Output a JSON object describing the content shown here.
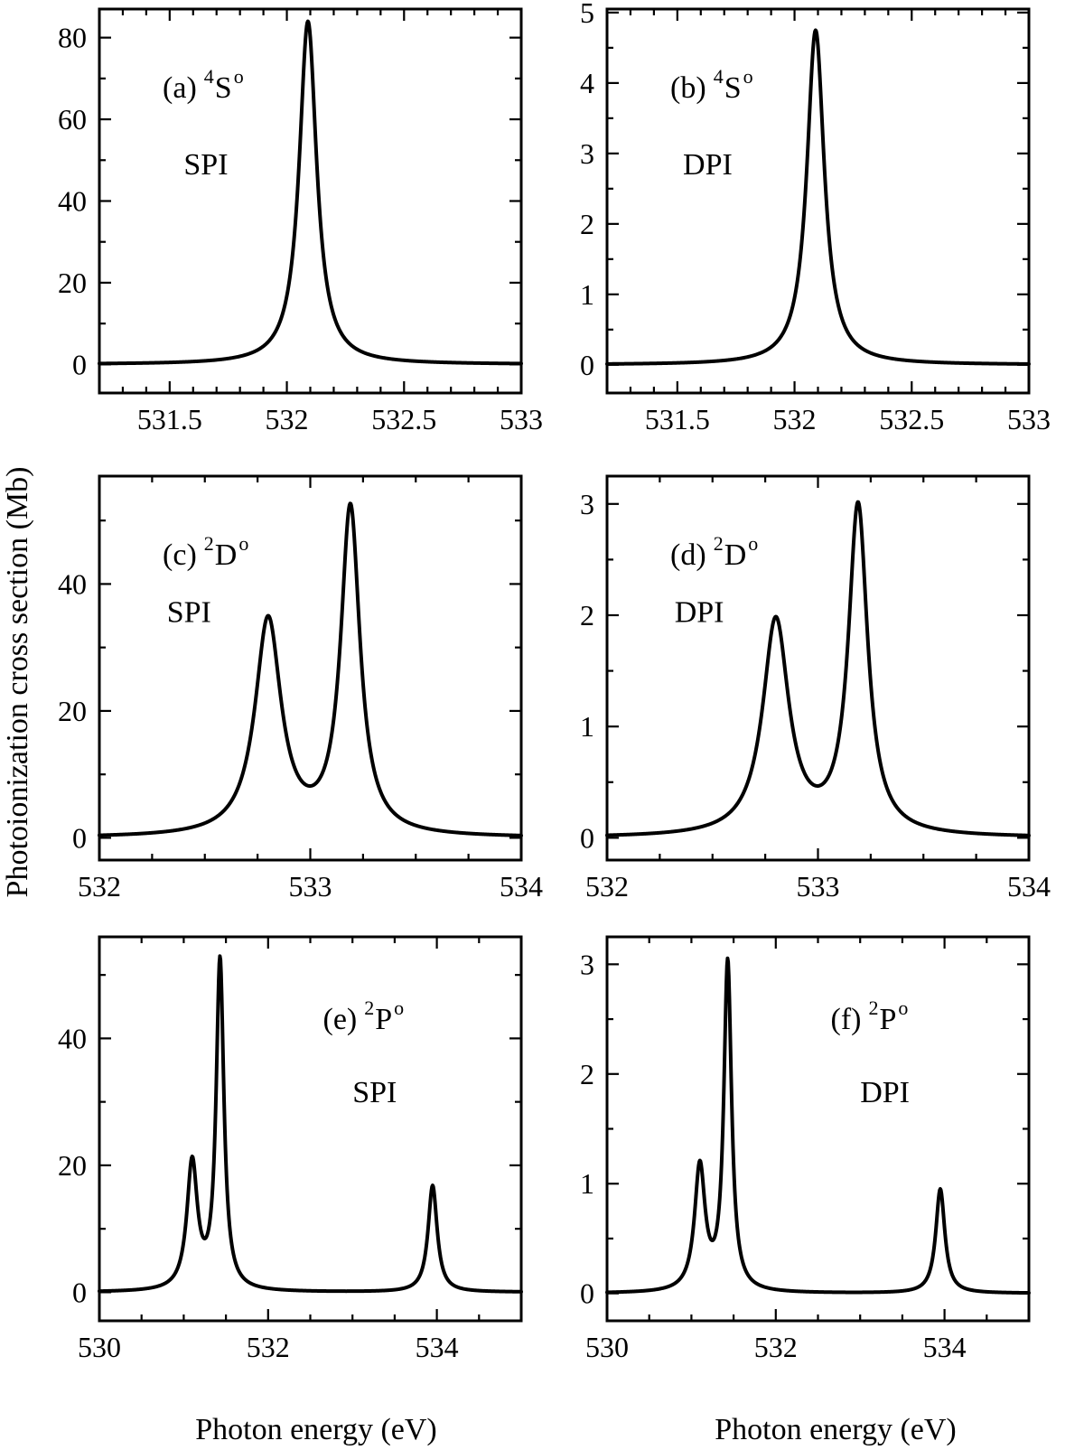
{
  "figure": {
    "ylabel": "Photoionization cross section (Mb)",
    "xlabel_left": "Photon energy (eV)",
    "xlabel_right": "Photon energy (eV)"
  },
  "chart_data": [
    {
      "type": "line",
      "panel": "(a)",
      "term": "S",
      "term_sup_left": "4",
      "term_sup_right": "o",
      "label": "SPI",
      "xlim": [
        531.2,
        533
      ],
      "ylim": [
        -7,
        87
      ],
      "xticks": [
        531.5,
        532,
        532.5,
        533
      ],
      "xtick_labels": [
        "531.5",
        "532",
        "532.5",
        "533"
      ],
      "yticks": [
        0,
        20,
        40,
        60,
        80
      ],
      "ytick_labels": [
        "0",
        "20",
        "40",
        "60",
        "80"
      ],
      "xminor": 0.1,
      "yminor": 10,
      "series": [
        {
          "peaks": [
            {
              "x": 532.09,
              "height": 84.0,
              "hwhm": 0.045
            }
          ]
        }
      ]
    },
    {
      "type": "line",
      "panel": "(b)",
      "term": "S",
      "term_sup_left": "4",
      "term_sup_right": "o",
      "label": "DPI",
      "xlim": [
        531.2,
        533
      ],
      "ylim": [
        -0.4,
        5.05
      ],
      "xticks": [
        531.5,
        532,
        532.5,
        533
      ],
      "xtick_labels": [
        "531.5",
        "532",
        "532.5",
        "533"
      ],
      "yticks": [
        0,
        1,
        2,
        3,
        4,
        5
      ],
      "ytick_labels": [
        "0",
        "1",
        "2",
        "3",
        "4",
        "5"
      ],
      "xminor": 0.1,
      "yminor": 0.5,
      "series": [
        {
          "peaks": [
            {
              "x": 532.09,
              "height": 4.75,
              "hwhm": 0.045
            }
          ]
        }
      ]
    },
    {
      "type": "line",
      "panel": "(c)",
      "term": "D",
      "term_sup_left": "2",
      "term_sup_right": "o",
      "label": "SPI",
      "xlim": [
        532,
        534
      ],
      "ylim": [
        -3.5,
        57
      ],
      "xticks": [
        532,
        533,
        534
      ],
      "xtick_labels": [
        "532",
        "533",
        "534"
      ],
      "yticks": [
        0,
        20,
        40
      ],
      "ytick_labels": [
        "0",
        "20",
        "40"
      ],
      "xminor": 0.25,
      "yminor": 10,
      "series": [
        {
          "peaks": [
            {
              "x": 532.8,
              "height": 34.0,
              "hwhm": 0.075
            },
            {
              "x": 533.19,
              "height": 51.5,
              "hwhm": 0.055
            }
          ]
        }
      ]
    },
    {
      "type": "line",
      "panel": "(d)",
      "term": "D",
      "term_sup_left": "2",
      "term_sup_right": "o",
      "label": "DPI",
      "xlim": [
        532,
        534
      ],
      "ylim": [
        -0.2,
        3.25
      ],
      "xticks": [
        532,
        533,
        534
      ],
      "xtick_labels": [
        "532",
        "533",
        "534"
      ],
      "yticks": [
        0,
        1,
        2,
        3
      ],
      "ytick_labels": [
        "0",
        "1",
        "2",
        "3"
      ],
      "xminor": 0.25,
      "yminor": 0.5,
      "series": [
        {
          "peaks": [
            {
              "x": 532.8,
              "height": 1.93,
              "hwhm": 0.075
            },
            {
              "x": 533.19,
              "height": 2.95,
              "hwhm": 0.055
            }
          ]
        }
      ]
    },
    {
      "type": "line",
      "panel": "(e)",
      "term": "P",
      "term_sup_left": "2",
      "term_sup_right": "o",
      "label": "SPI",
      "xlim": [
        530,
        535
      ],
      "ylim": [
        -4.5,
        56
      ],
      "xticks": [
        530,
        532,
        534
      ],
      "xtick_labels": [
        "530",
        "532",
        "534"
      ],
      "yticks": [
        0,
        20,
        40
      ],
      "ytick_labels": [
        "0",
        "20",
        "40"
      ],
      "xminor": 0.5,
      "yminor": 10,
      "series": [
        {
          "peaks": [
            {
              "x": 531.1,
              "height": 20.0,
              "hwhm": 0.075
            },
            {
              "x": 531.43,
              "height": 52.0,
              "hwhm": 0.055
            },
            {
              "x": 533.95,
              "height": 16.8,
              "hwhm": 0.065
            }
          ]
        }
      ]
    },
    {
      "type": "line",
      "panel": "(f)",
      "term": "P",
      "term_sup_left": "2",
      "term_sup_right": "o",
      "label": "DPI",
      "xlim": [
        530,
        535
      ],
      "ylim": [
        -0.25,
        3.25
      ],
      "xticks": [
        530,
        532,
        534
      ],
      "xtick_labels": [
        "530",
        "532",
        "534"
      ],
      "yticks": [
        0,
        1,
        2,
        3
      ],
      "ytick_labels": [
        "0",
        "1",
        "2",
        "3"
      ],
      "xminor": 0.5,
      "yminor": 0.5,
      "series": [
        {
          "peaks": [
            {
              "x": 531.1,
              "height": 1.13,
              "hwhm": 0.075
            },
            {
              "x": 531.43,
              "height": 3.0,
              "hwhm": 0.055
            },
            {
              "x": 533.95,
              "height": 0.95,
              "hwhm": 0.065
            }
          ]
        }
      ]
    }
  ]
}
